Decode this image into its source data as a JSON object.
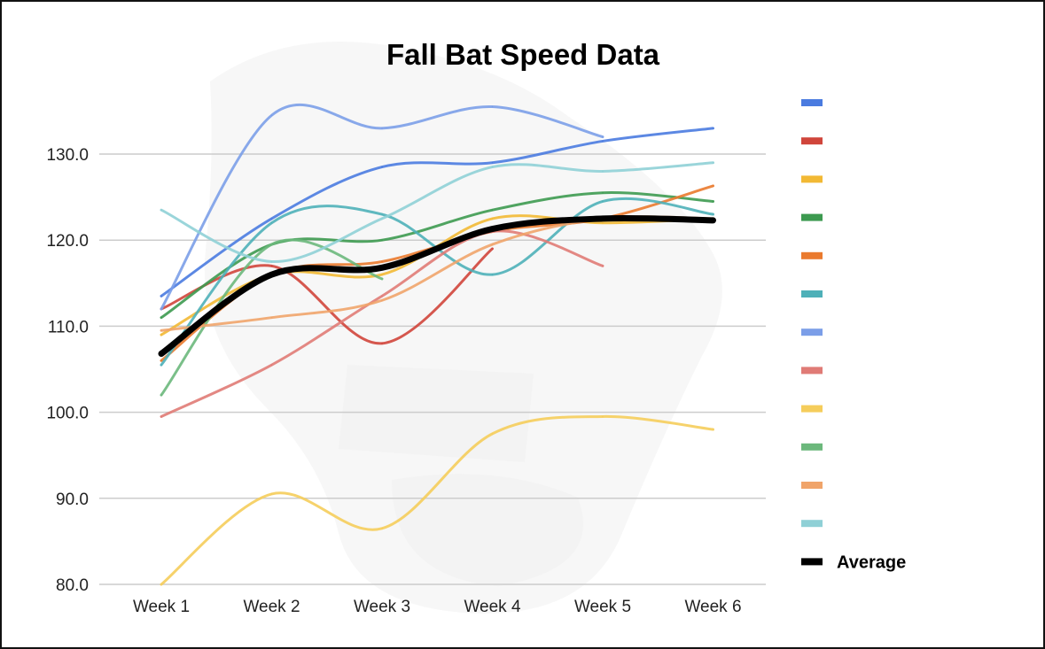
{
  "chart_data": {
    "type": "line",
    "title": "Fall Bat Speed Data",
    "xlabel": "",
    "ylabel": "",
    "categories": [
      "Week 1",
      "Week 2",
      "Week 3",
      "Week 4",
      "Week 5",
      "Week 6"
    ],
    "ylim": [
      80,
      130
    ],
    "yticks": [
      "80.0",
      "90.0",
      "100.0",
      "110.0",
      "120.0",
      "130.0"
    ],
    "grid": true,
    "legend_position": "right",
    "series": [
      {
        "color": "#4a7be0",
        "values": [
          113.5,
          122.5,
          128.5,
          129,
          131.5,
          133
        ]
      },
      {
        "color": "#d0453b",
        "values": [
          112,
          117,
          108,
          119,
          null,
          null
        ]
      },
      {
        "color": "#f2b934",
        "values": [
          109,
          116,
          116,
          122.5,
          122,
          122.5
        ]
      },
      {
        "color": "#3d9a50",
        "values": [
          111,
          119.5,
          120,
          123.5,
          125.5,
          124.5
        ]
      },
      {
        "color": "#ea7a2e",
        "values": [
          106,
          116,
          117.5,
          121,
          122.5,
          126.3
        ]
      },
      {
        "color": "#4eb0b8",
        "values": [
          105.5,
          122,
          123,
          116,
          124.5,
          123
        ]
      },
      {
        "color": "#7b9ee8",
        "values": [
          112,
          134.5,
          133,
          135.5,
          132,
          null
        ]
      },
      {
        "color": "#e07b76",
        "values": [
          99.5,
          105.5,
          113.5,
          121,
          117,
          null
        ]
      },
      {
        "color": "#f5cd5b",
        "values": [
          80,
          90.5,
          86.5,
          97.5,
          99.5,
          98
        ]
      },
      {
        "color": "#6cb87c",
        "values": [
          102,
          119.5,
          115.5,
          null,
          null,
          null
        ]
      },
      {
        "color": "#f0a46a",
        "values": [
          109.5,
          111,
          113,
          119.5,
          122.5,
          122.5
        ]
      },
      {
        "color": "#8fd0d6",
        "values": [
          123.5,
          117.5,
          122.5,
          128.5,
          128,
          129
        ]
      },
      {
        "name": "Average",
        "color": "#000000",
        "values": [
          106.8,
          116,
          116.8,
          121.3,
          122.5,
          122.3
        ]
      }
    ]
  }
}
